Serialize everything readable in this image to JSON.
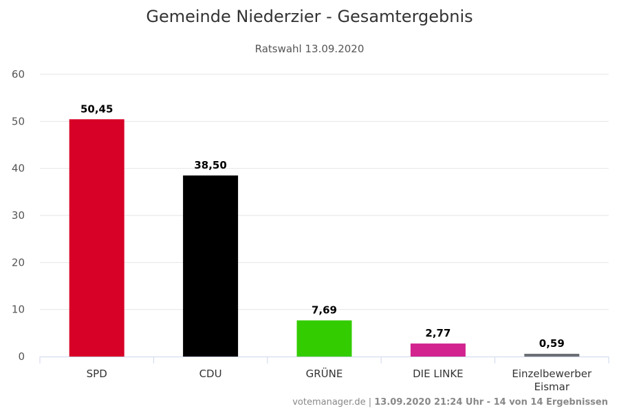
{
  "chart_data": {
    "type": "bar",
    "title": "Gemeinde Niederzier - Gesamtergebnis",
    "subtitle": "Ratswahl 13.09.2020",
    "categories": [
      {
        "label": [
          "SPD"
        ]
      },
      {
        "label": [
          "CDU"
        ]
      },
      {
        "label": [
          "GRÜNE"
        ]
      },
      {
        "label": [
          "DIE LINKE"
        ]
      },
      {
        "label": [
          "Einzelbewerber",
          "Eismar"
        ]
      }
    ],
    "values": [
      50.45,
      38.5,
      7.69,
      2.77,
      0.59
    ],
    "data_labels": [
      "50,45",
      "38,50",
      "7,69",
      "2,77",
      "0,59"
    ],
    "colors": [
      "#d70026",
      "#000000",
      "#33cc00",
      "#d2238f",
      "#6c6f73"
    ],
    "ylim": [
      0,
      60
    ],
    "yticks": [
      0,
      10,
      20,
      30,
      40,
      50,
      60
    ],
    "grid": true,
    "legend": "none"
  },
  "credits": {
    "source": "votemanager.de",
    "separator": " | ",
    "timestamp": "13.09.2020 21:24 Uhr - 14 von 14 Ergebnissen"
  }
}
